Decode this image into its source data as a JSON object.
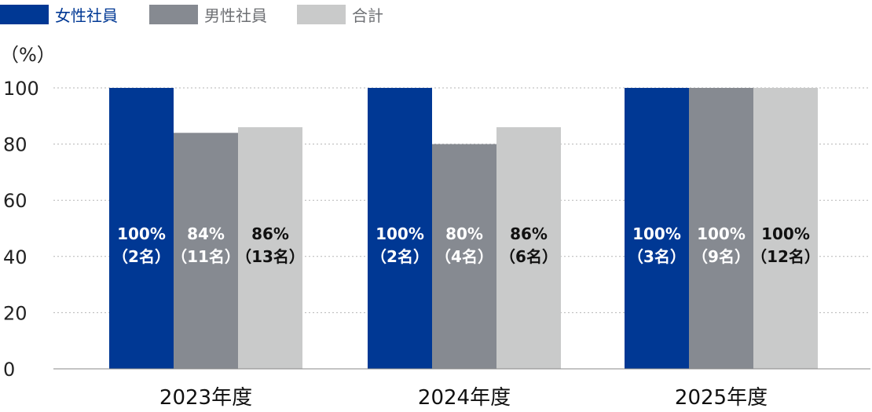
{
  "chart_data": {
    "type": "bar",
    "unit_label": "（%）",
    "categories": [
      "2023年度",
      "2024年度",
      "2025年度"
    ],
    "ylim": [
      0,
      100
    ],
    "yticks": [
      0,
      20,
      40,
      60,
      80,
      100
    ],
    "grid": true,
    "legend_position": "top-left",
    "series": [
      {
        "name": "女性社員",
        "color": "#003894",
        "label_color": "#ffffff",
        "values": [
          100,
          100,
          100
        ],
        "labels": [
          [
            "100%",
            "（2名）"
          ],
          [
            "100%",
            "（2名）"
          ],
          [
            "100%",
            "（3名）"
          ]
        ]
      },
      {
        "name": "男性社員",
        "color": "#868a91",
        "label_color": "#ffffff",
        "values": [
          84,
          80,
          100
        ],
        "labels": [
          [
            "84%",
            "（11名）"
          ],
          [
            "80%",
            "（4名）"
          ],
          [
            "100%",
            "（9名）"
          ]
        ]
      },
      {
        "name": "合計",
        "color": "#c9caca",
        "label_color": "#111111",
        "values": [
          86,
          86,
          100
        ],
        "labels": [
          [
            "86%",
            "（13名）"
          ],
          [
            "86%",
            "（6名）"
          ],
          [
            "100%",
            "（12名）"
          ]
        ]
      }
    ]
  }
}
